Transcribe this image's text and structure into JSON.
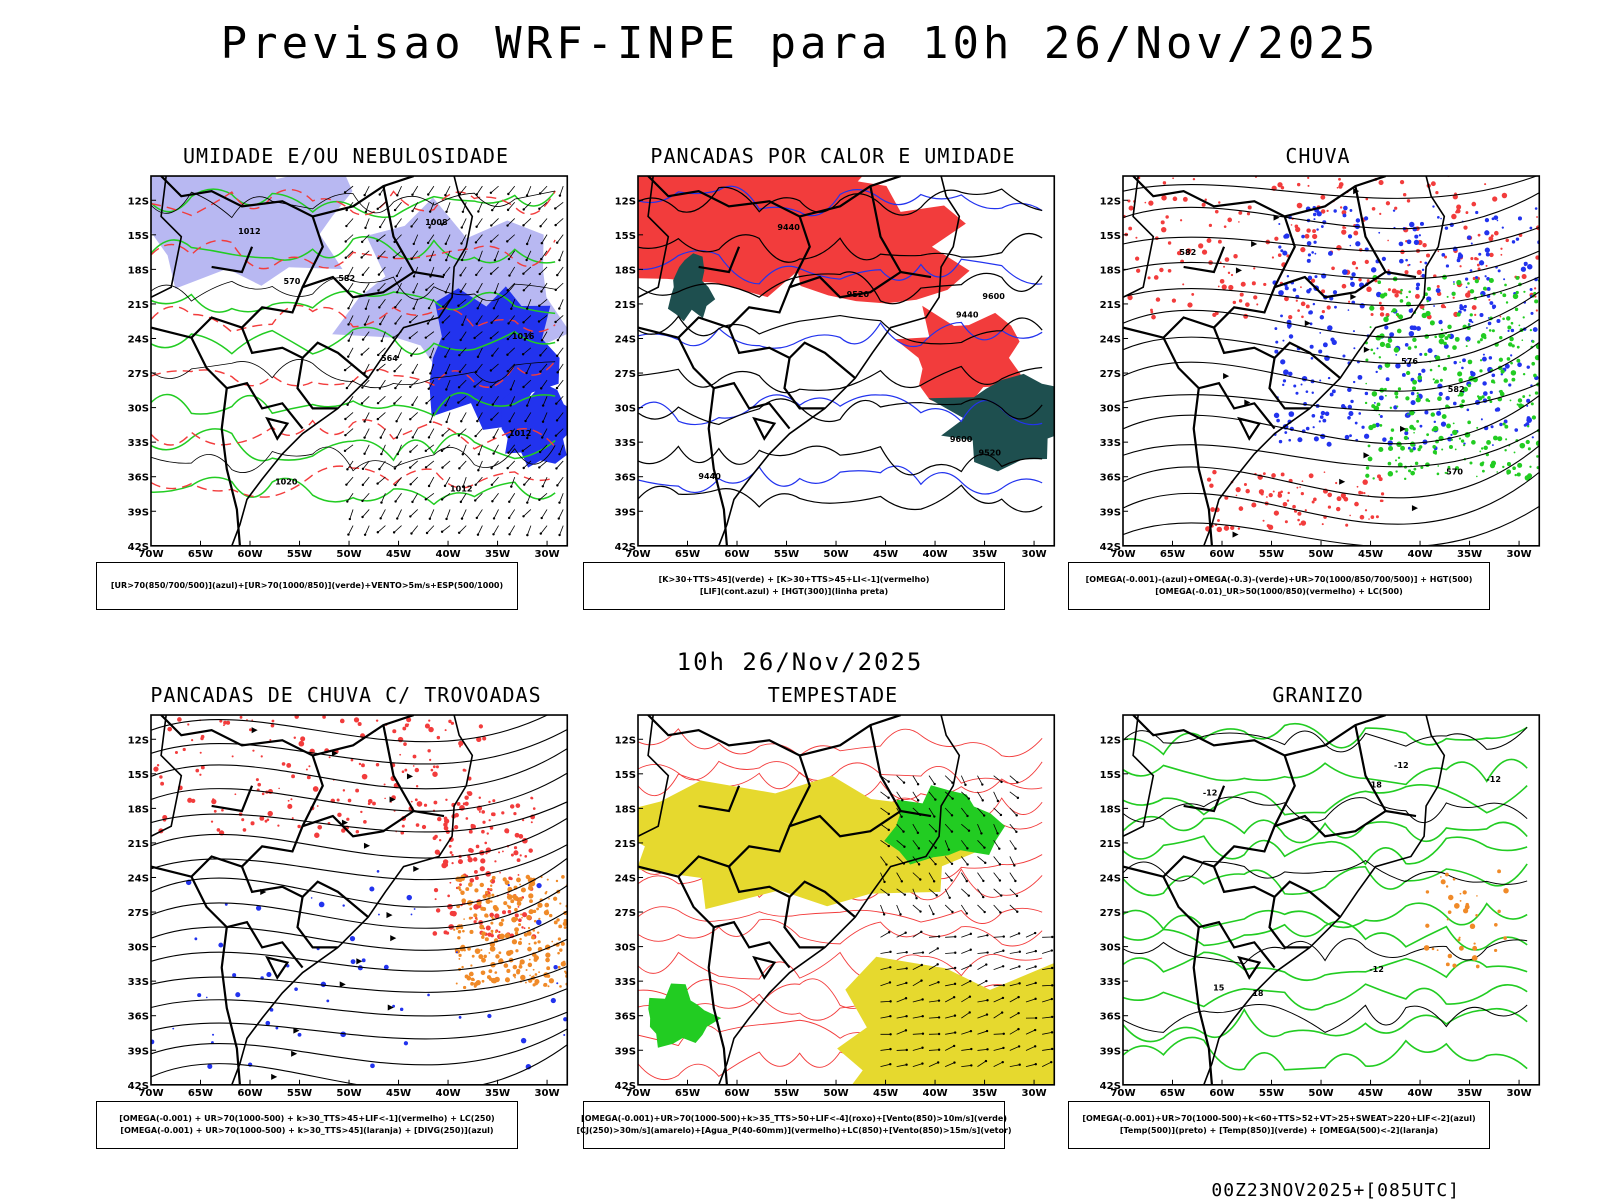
{
  "header": {
    "title": "Previsao WRF-INPE  para 10h 26/Nov/2025",
    "mid_title": "10h 26/Nov/2025",
    "footer": "00Z23NOV2025+[085UTC]"
  },
  "axes": {
    "lat_labels": [
      "12S",
      "15S",
      "18S",
      "21S",
      "24S",
      "27S",
      "30S",
      "33S",
      "36S",
      "39S",
      "42S"
    ],
    "lon_labels": [
      "70W",
      "65W",
      "60W",
      "55W",
      "50W",
      "45W",
      "40W",
      "35W",
      "30W"
    ]
  },
  "colors": {
    "red": "#f23c3c",
    "green": "#22cc22",
    "blue": "#2233ee",
    "lavender": "#b8b8f2",
    "dark_teal": "#1e4f4f",
    "yellow": "#e6d92e",
    "orange": "#f08a28",
    "black": "#000000"
  },
  "panels": [
    {
      "title": "UMIDADE E/OU NEBULOSIDADE",
      "legend": [
        "[UR>70(850/700/500)](azul)+[UR>70(1000/850)](verde)+VENTO>5m/s+ESP(500/1000)"
      ],
      "contour_labels": [
        "1012",
        "1012",
        "1012",
        "1016",
        "1020",
        "1008",
        "570",
        "564",
        "582"
      ]
    },
    {
      "title": "PANCADAS POR CALOR E UMIDADE",
      "legend": [
        "[K>30+TTS>45](verde) + [K>30+TTS>45+LI<-1](vermelho)",
        "[LIF](cont.azul) + [HGT(300)](linha preta)"
      ],
      "contour_labels": [
        "9600",
        "9600",
        "9520",
        "9520",
        "9440",
        "9440",
        "9440"
      ]
    },
    {
      "title": "CHUVA",
      "legend": [
        "[OMEGA(-0.001)-(azul)+OMEGA(-0.3)-(verde)+UR>70(1000/850/700/500)] + HGT(500)",
        "[OMEGA(-0.01)_UR>50(1000/850)(vermelho) + LC(500)"
      ],
      "contour_labels": [
        "582",
        "576",
        "570",
        "582"
      ]
    },
    {
      "title": "PANCADAS DE CHUVA C/ TROVOADAS",
      "legend": [
        "[OMEGA(-0.001) + UR>70(1000-500) + k>30_TTS>45+LIF<-1](vermelho) + LC(250)",
        "[OMEGA(-0.001) + UR>70(1000-500) + k>30_TTS>45](laranja) + [DIVG(250)](azul)"
      ],
      "contour_labels": []
    },
    {
      "title": "TEMPESTADE",
      "legend": [
        "[OMEGA(-0.001)+UR>70(1000-500)+k>35_TTS>50+LIF<-4](roxo)+[Vento(850)>10m/s](verde)",
        "[CJ(250)>30m/s](amarelo)+[Agua_P(40-60mm)](vermelho)+LC(850)+[Vento(850)>15m/s](vetor)"
      ],
      "contour_labels": []
    },
    {
      "title": "GRANIZO",
      "legend": [
        "[OMEGA(-0.001)+UR>70(1000-500)+k<60+TTS>52+VT>25+SWEAT>220+LIF<-2](azul)",
        "[Temp(500)](preto) + [Temp(850)](verde) + [OMEGA(500)<-2](laranja)"
      ],
      "contour_labels": [
        "-12",
        "-12",
        "-12",
        "-12",
        "18",
        "18",
        "15"
      ]
    }
  ]
}
